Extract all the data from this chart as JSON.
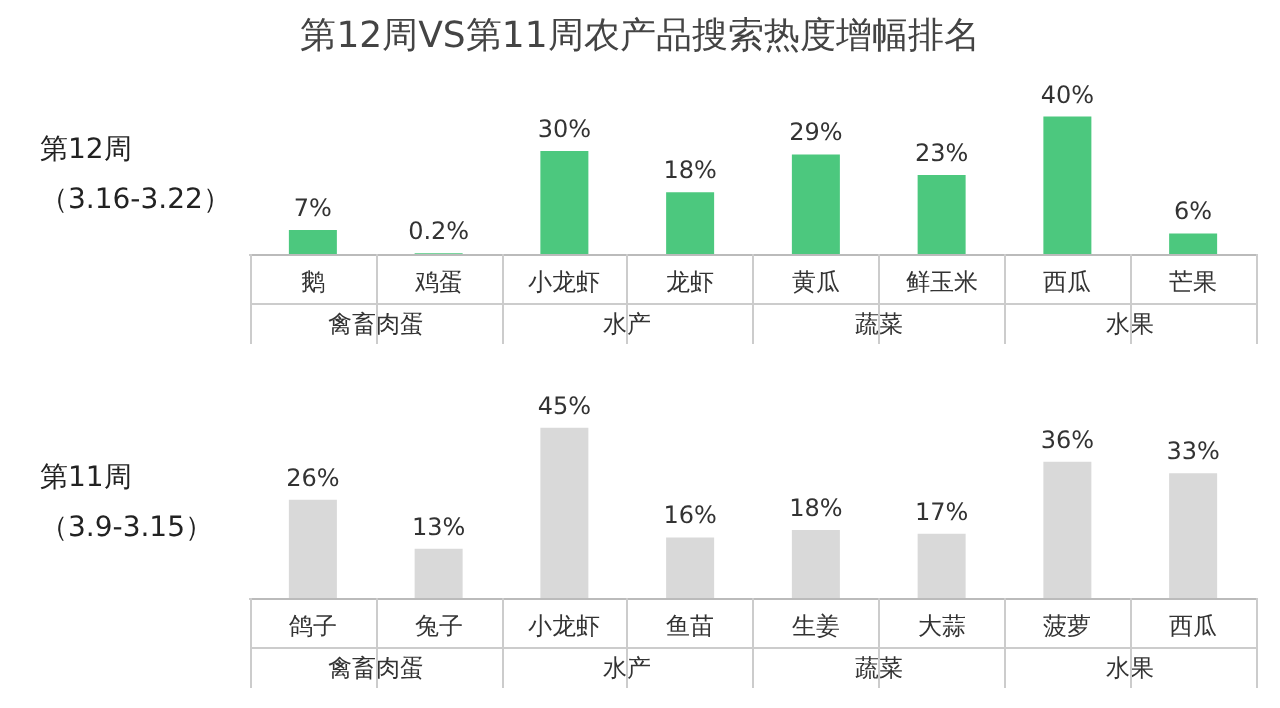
{
  "chart_data": [
    {
      "type": "bar",
      "title": "第12周VS第11周农产品搜索热度增幅排名",
      "ylabel": "第12周",
      "subtitle": "（3.16-3.22）",
      "categories": [
        "鹅",
        "鸡蛋",
        "小龙虾",
        "龙虾",
        "黄瓜",
        "鲜玉米",
        "西瓜",
        "芒果"
      ],
      "values": [
        7,
        0.2,
        30,
        18,
        29,
        23,
        40,
        6
      ],
      "value_labels": [
        "7%",
        "0.2%",
        "30%",
        "18%",
        "29%",
        "23%",
        "40%",
        "6%"
      ],
      "color": "#4cc87e",
      "annotations": [
        "禽畜肉蛋",
        "水产",
        "蔬菜",
        "水果"
      ],
      "grid": false
    },
    {
      "type": "bar",
      "ylabel": "第11周",
      "subtitle": "（3.9-3.15）",
      "categories": [
        "鸽子",
        "兔子",
        "小龙虾",
        "鱼苗",
        "生姜",
        "大蒜",
        "菠萝",
        "西瓜"
      ],
      "values": [
        26,
        13,
        45,
        16,
        18,
        17,
        36,
        33
      ],
      "value_labels": [
        "26%",
        "13%",
        "45%",
        "16%",
        "18%",
        "17%",
        "36%",
        "33%"
      ],
      "color": "#d9d9d9",
      "annotations": [
        "禽畜肉蛋",
        "水产",
        "蔬菜",
        "水果"
      ],
      "grid": false
    }
  ]
}
